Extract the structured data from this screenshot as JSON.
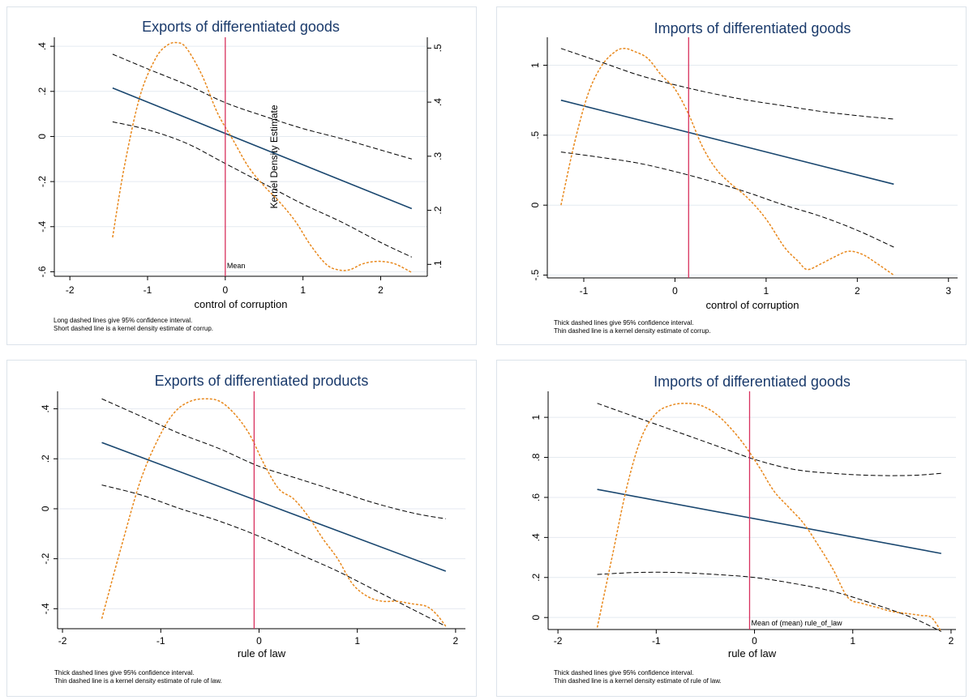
{
  "chart_data": [
    {
      "type": "line",
      "title": "Exports of differentiated goods",
      "xlabel": "control of corruption",
      "ylabel": "",
      "y2label": "Kernel Density Estimate",
      "xlim": [
        -2.2,
        2.6
      ],
      "ylim": [
        -0.62,
        0.44
      ],
      "y2lim": [
        0.078,
        0.52
      ],
      "xticks": [
        -2,
        -1,
        0,
        1,
        2
      ],
      "xtick_labels": [
        "-2",
        "-1",
        "0",
        "1",
        "2"
      ],
      "yticks": [
        -0.6,
        -0.4,
        -0.2,
        0,
        0.2,
        0.4
      ],
      "ytick_labels": [
        "-.6",
        "-.4",
        "-.2",
        "0",
        ".2",
        ".4"
      ],
      "y2ticks": [
        0.1,
        0.2,
        0.3,
        0.4,
        0.5
      ],
      "y2tick_labels": [
        ".1",
        ".2",
        ".3",
        ".4",
        ".5"
      ],
      "mean_line": 0.0,
      "mean_label": "Mean",
      "grid": true,
      "series": [
        {
          "role": "estimate",
          "x": [
            -1.45,
            2.4
          ],
          "y": [
            0.215,
            -0.32
          ]
        },
        {
          "role": "upper_ci",
          "x": [
            -1.45,
            -1.0,
            -0.5,
            0.0,
            0.5,
            1.0,
            1.5,
            2.0,
            2.4
          ],
          "y": [
            0.365,
            0.3,
            0.23,
            0.15,
            0.09,
            0.035,
            -0.01,
            -0.06,
            -0.1
          ]
        },
        {
          "role": "lower_ci",
          "x": [
            -1.45,
            -1.0,
            -0.5,
            0.0,
            0.5,
            1.0,
            1.5,
            2.0,
            2.4
          ],
          "y": [
            0.065,
            0.03,
            -0.03,
            -0.12,
            -0.21,
            -0.3,
            -0.38,
            -0.47,
            -0.535
          ]
        },
        {
          "role": "kernel_density",
          "axis": "y2",
          "x": [
            -1.45,
            -1.3,
            -1.1,
            -0.9,
            -0.75,
            -0.62,
            -0.5,
            -0.3,
            -0.1,
            0.1,
            0.3,
            0.5,
            0.7,
            0.9,
            1.1,
            1.3,
            1.45,
            1.6,
            1.75,
            1.9,
            2.05,
            2.2,
            2.4
          ],
          "y": [
            0.15,
            0.28,
            0.41,
            0.48,
            0.505,
            0.51,
            0.5,
            0.45,
            0.38,
            0.33,
            0.28,
            0.245,
            0.215,
            0.18,
            0.135,
            0.1,
            0.09,
            0.09,
            0.1,
            0.105,
            0.105,
            0.1,
            0.085
          ]
        }
      ],
      "notes": [
        "Long dashed lines give 95% confidence interval.",
        "Short dashed line is a kernel density estimate of corrup."
      ]
    },
    {
      "type": "line",
      "title": "Imports of differentiated goods",
      "xlabel": "control of corruption",
      "ylabel": "",
      "xlim": [
        -1.4,
        3.1
      ],
      "ylim": [
        -0.52,
        1.2
      ],
      "xticks": [
        -1,
        0,
        1,
        2,
        3
      ],
      "xtick_labels": [
        "-1",
        "0",
        "1",
        "2",
        "3"
      ],
      "yticks": [
        -0.5,
        0,
        0.5,
        1
      ],
      "ytick_labels": [
        "-.5",
        "0",
        ".5",
        "1"
      ],
      "mean_line": 0.15,
      "grid": true,
      "series": [
        {
          "role": "estimate",
          "x": [
            -1.25,
            2.4
          ],
          "y": [
            0.75,
            0.15
          ]
        },
        {
          "role": "upper_ci",
          "x": [
            -1.25,
            -0.8,
            -0.4,
            0.0,
            0.4,
            0.8,
            1.2,
            1.6,
            2.0,
            2.4
          ],
          "y": [
            1.12,
            1.02,
            0.93,
            0.86,
            0.8,
            0.75,
            0.71,
            0.67,
            0.64,
            0.615
          ]
        },
        {
          "role": "lower_ci",
          "x": [
            -1.25,
            -0.8,
            -0.4,
            0.0,
            0.4,
            0.8,
            1.2,
            1.6,
            2.0,
            2.4
          ],
          "y": [
            0.38,
            0.34,
            0.3,
            0.24,
            0.17,
            0.09,
            0.0,
            -0.08,
            -0.18,
            -0.3
          ]
        },
        {
          "role": "kernel_density",
          "x": [
            -1.25,
            -1.1,
            -0.95,
            -0.8,
            -0.65,
            -0.55,
            -0.45,
            -0.3,
            -0.15,
            0.0,
            0.15,
            0.3,
            0.45,
            0.6,
            0.8,
            1.0,
            1.2,
            1.35,
            1.45,
            1.6,
            1.75,
            1.9,
            2.05,
            2.2,
            2.4
          ],
          "y": [
            0.0,
            0.45,
            0.8,
            1.0,
            1.1,
            1.12,
            1.1,
            1.05,
            0.93,
            0.83,
            0.65,
            0.42,
            0.26,
            0.16,
            0.05,
            -0.1,
            -0.3,
            -0.4,
            -0.46,
            -0.42,
            -0.37,
            -0.33,
            -0.35,
            -0.41,
            -0.5
          ]
        }
      ],
      "notes": [
        "Thick dashed lines give 95% confidence interval.",
        "Thin dashed line is a kernel density estimate of corrup."
      ]
    },
    {
      "type": "line",
      "title": "Exports of differentiated products",
      "xlabel": "rule of law",
      "ylabel": "",
      "xlim": [
        -2.05,
        2.1
      ],
      "ylim": [
        -0.48,
        0.47
      ],
      "xticks": [
        -2,
        -1,
        0,
        1,
        2
      ],
      "xtick_labels": [
        "-2",
        "-1",
        "0",
        "1",
        "2"
      ],
      "yticks": [
        -0.4,
        -0.2,
        0,
        0.2,
        0.4
      ],
      "ytick_labels": [
        "-.4",
        "-.2",
        "0",
        ".2",
        ".4"
      ],
      "mean_line": -0.05,
      "grid": true,
      "series": [
        {
          "role": "estimate",
          "x": [
            -1.6,
            1.9
          ],
          "y": [
            0.265,
            -0.25
          ]
        },
        {
          "role": "upper_ci",
          "x": [
            -1.6,
            -1.2,
            -0.8,
            -0.4,
            0.0,
            0.4,
            0.8,
            1.2,
            1.6,
            1.9
          ],
          "y": [
            0.44,
            0.37,
            0.3,
            0.24,
            0.17,
            0.12,
            0.07,
            0.02,
            -0.02,
            -0.04
          ]
        },
        {
          "role": "lower_ci",
          "x": [
            -1.6,
            -1.2,
            -0.8,
            -0.4,
            0.0,
            0.4,
            0.8,
            1.2,
            1.6,
            1.9
          ],
          "y": [
            0.095,
            0.055,
            0.0,
            -0.05,
            -0.11,
            -0.18,
            -0.25,
            -0.33,
            -0.41,
            -0.47
          ]
        },
        {
          "role": "kernel_density",
          "x": [
            -1.6,
            -1.4,
            -1.2,
            -1.0,
            -0.85,
            -0.7,
            -0.55,
            -0.4,
            -0.25,
            -0.1,
            0.05,
            0.2,
            0.35,
            0.5,
            0.65,
            0.8,
            0.95,
            1.1,
            1.25,
            1.4,
            1.55,
            1.7,
            1.8,
            1.9
          ],
          "y": [
            -0.44,
            -0.15,
            0.12,
            0.3,
            0.39,
            0.43,
            0.44,
            0.43,
            0.38,
            0.3,
            0.18,
            0.08,
            0.04,
            -0.03,
            -0.12,
            -0.2,
            -0.3,
            -0.35,
            -0.37,
            -0.37,
            -0.38,
            -0.39,
            -0.42,
            -0.47
          ]
        }
      ],
      "notes": [
        "Thick dashed lines give 95% confidence interval.",
        "Thin dashed line is a kernel density estimate of rule of law."
      ]
    },
    {
      "type": "line",
      "title": "Imports of differentiated goods",
      "xlabel": "rule of law",
      "ylabel": "",
      "xlim": [
        -2.1,
        2.05
      ],
      "ylim": [
        -0.06,
        1.13
      ],
      "xticks": [
        -2,
        -1,
        0,
        1,
        2
      ],
      "xtick_labels": [
        "-2",
        "-1",
        "0",
        "1",
        "2"
      ],
      "yticks": [
        0,
        0.2,
        0.4,
        0.6,
        0.8,
        1
      ],
      "ytick_labels": [
        "0",
        ".2",
        ".4",
        ".6",
        ".8",
        "1"
      ],
      "mean_line": -0.05,
      "mean_label": "Mean of (mean) rule_of_law",
      "grid": true,
      "series": [
        {
          "role": "estimate",
          "x": [
            -1.6,
            1.9
          ],
          "y": [
            0.64,
            0.32
          ]
        },
        {
          "role": "upper_ci",
          "x": [
            -1.6,
            -1.2,
            -0.8,
            -0.4,
            0.0,
            0.4,
            0.8,
            1.2,
            1.6,
            1.9
          ],
          "y": [
            1.07,
            1.0,
            0.93,
            0.86,
            0.79,
            0.74,
            0.72,
            0.71,
            0.71,
            0.72
          ]
        },
        {
          "role": "lower_ci",
          "x": [
            -1.6,
            -1.2,
            -0.8,
            -0.4,
            0.0,
            0.4,
            0.8,
            1.2,
            1.6,
            1.9
          ],
          "y": [
            0.215,
            0.225,
            0.225,
            0.215,
            0.2,
            0.17,
            0.13,
            0.07,
            0.0,
            -0.07
          ]
        },
        {
          "role": "kernel_density",
          "x": [
            -1.6,
            -1.45,
            -1.3,
            -1.15,
            -1.0,
            -0.85,
            -0.7,
            -0.55,
            -0.4,
            -0.25,
            -0.1,
            0.05,
            0.2,
            0.35,
            0.5,
            0.65,
            0.8,
            0.95,
            1.1,
            1.25,
            1.4,
            1.55,
            1.7,
            1.8,
            1.9
          ],
          "y": [
            -0.05,
            0.3,
            0.65,
            0.9,
            1.02,
            1.06,
            1.07,
            1.06,
            1.02,
            0.95,
            0.86,
            0.75,
            0.63,
            0.55,
            0.47,
            0.36,
            0.24,
            0.1,
            0.07,
            0.05,
            0.03,
            0.02,
            0.01,
            0.0,
            -0.07
          ]
        }
      ],
      "notes": [
        "Thick dashed lines give 95% confidence interval.",
        "Thin dashed line is a kernel density estimate of rule of law."
      ]
    }
  ]
}
